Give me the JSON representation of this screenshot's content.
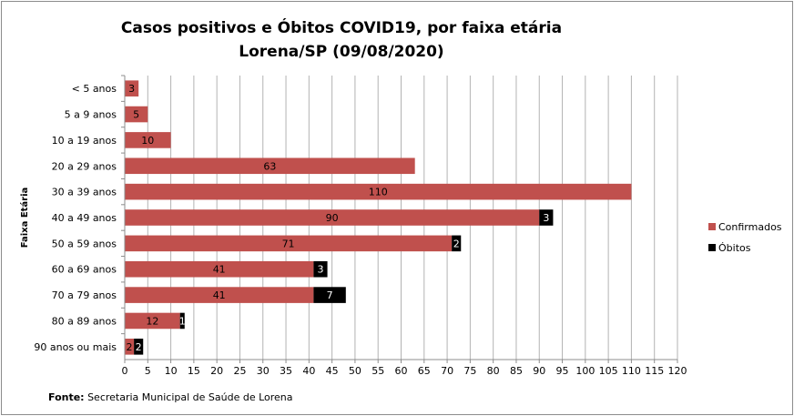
{
  "chart_data": {
    "type": "bar",
    "orientation": "horizontal",
    "stacked": true,
    "title": "Casos positivos  e Óbitos COVID19, por faixa etária",
    "subtitle": "Lorena/SP (09/08/2020)",
    "ylabel": "Faixa Etária",
    "xlabel": "",
    "xlim": [
      0,
      120
    ],
    "x_ticks": [
      0,
      5,
      10,
      15,
      20,
      25,
      30,
      35,
      40,
      45,
      50,
      55,
      60,
      65,
      70,
      75,
      80,
      85,
      90,
      95,
      100,
      105,
      110,
      115,
      120
    ],
    "grid": true,
    "legend_position": "right",
    "categories": [
      "< 5 anos",
      "5 a 9 anos",
      "10 a 19 anos",
      "20 a 29 anos",
      "30 a 39 anos",
      "40 a 49 anos",
      "50 a 59 anos",
      "60 a 69 anos",
      "70 a 79 anos",
      "80 a 89 anos",
      "90 anos ou mais"
    ],
    "series": [
      {
        "name": "Confirmados",
        "color": "#c0504d",
        "values": [
          3,
          5,
          10,
          63,
          110,
          90,
          71,
          41,
          41,
          12,
          2
        ]
      },
      {
        "name": "Óbitos",
        "color": "#000000",
        "values": [
          null,
          null,
          null,
          null,
          null,
          3,
          2,
          3,
          7,
          1,
          2
        ]
      }
    ]
  },
  "source": {
    "label": "Fonte:",
    "text": " Secretaria Municipal de Saúde de Lorena"
  }
}
